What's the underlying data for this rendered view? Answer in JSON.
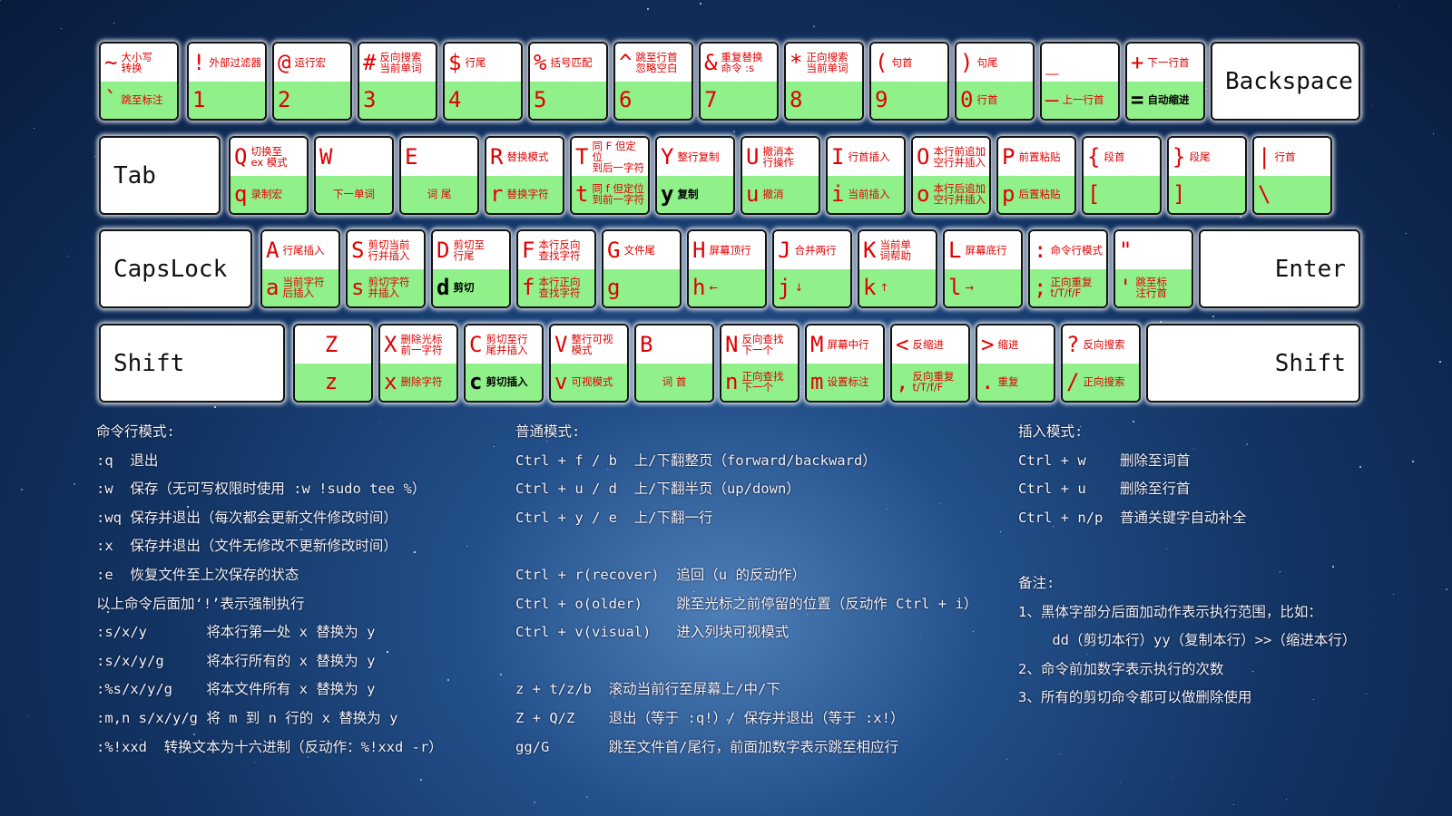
{
  "keyboard": {
    "rows": [
      {
        "keys": [
          {
            "top_char": "~",
            "top_text": "大小写\n转换",
            "bottom_char": "`",
            "bottom_text": "跳至标注"
          },
          {
            "top_char": "!",
            "top_text": "外部过滤器",
            "bottom_char": "1"
          },
          {
            "top_char": "@",
            "top_text": "运行宏",
            "bottom_char": "2"
          },
          {
            "top_char": "#",
            "top_text": "反向搜索\n当前单词",
            "bottom_char": "3"
          },
          {
            "top_char": "$",
            "top_text": "行尾",
            "bottom_char": "4"
          },
          {
            "top_char": "%",
            "top_text": "括号匹配",
            "bottom_char": "5"
          },
          {
            "top_char": "^",
            "top_text": "跳至行首\n忽略空白",
            "bottom_char": "6"
          },
          {
            "top_char": "&",
            "top_text": "重复替换\n命令 :s",
            "bottom_char": "7"
          },
          {
            "top_char": "*",
            "top_text": "正向搜索\n当前单词",
            "bottom_char": "8"
          },
          {
            "top_char": "(",
            "top_text": "句首",
            "bottom_char": "9"
          },
          {
            "top_char": ")",
            "top_text": "句尾",
            "bottom_char": "0",
            "bottom_text": "行首"
          },
          {
            "top_char": "_",
            "bottom_char": "—",
            "bottom_text": "上一行首"
          },
          {
            "top_char": "+",
            "top_text": "下一行首",
            "bottom_char": "=",
            "bottom_text": "自动缩进",
            "bottom_bold": true
          },
          {
            "label": "Backspace"
          }
        ]
      },
      {
        "keys": [
          {
            "label": "Tab"
          },
          {
            "top_char": "Q",
            "top_text": "切换至\nex 模式",
            "bottom_char": "q",
            "bottom_text": "录制宏"
          },
          {
            "top_char": "W",
            "bottom_text": "下一单词"
          },
          {
            "top_char": "E",
            "bottom_text": "词 尾"
          },
          {
            "top_char": "R",
            "top_text": "替换模式",
            "bottom_char": "r",
            "bottom_text": "替换字符"
          },
          {
            "top_char": "T",
            "top_text": "同 F 但定位\n到后一字符",
            "bottom_char": "t",
            "bottom_text": "同 f 但定位\n到前一字符"
          },
          {
            "top_char": "Y",
            "top_text": "整行复制",
            "bottom_char": "y",
            "bottom_text": "复制",
            "bottom_bold": true
          },
          {
            "top_char": "U",
            "top_text": "撤消本\n行操作",
            "bottom_char": "u",
            "bottom_text": "撤消"
          },
          {
            "top_char": "I",
            "top_text": "行首插入",
            "bottom_char": "i",
            "bottom_text": "当前插入"
          },
          {
            "top_char": "O",
            "top_text": "本行前追加\n空行并插入",
            "bottom_char": "o",
            "bottom_text": "本行后追加\n空行并插入"
          },
          {
            "top_char": "P",
            "top_text": "前置粘贴",
            "bottom_char": "p",
            "bottom_text": "后置粘贴"
          },
          {
            "top_char": "{",
            "top_text": "段首",
            "bottom_char": "["
          },
          {
            "top_char": "}",
            "top_text": "段尾",
            "bottom_char": "]"
          },
          {
            "top_char": "|",
            "top_text": "行首",
            "bottom_char": "\\"
          }
        ]
      },
      {
        "keys": [
          {
            "label": "CapsLock"
          },
          {
            "top_char": "A",
            "top_text": "行尾插入",
            "bottom_char": "a",
            "bottom_text": "当前字符\n后插入"
          },
          {
            "top_char": "S",
            "top_text": "剪切当前\n行并插入",
            "bottom_char": "s",
            "bottom_text": "剪切字符\n并插入"
          },
          {
            "top_char": "D",
            "top_text": "剪切至\n行尾",
            "bottom_char": "d",
            "bottom_text": "剪切",
            "bottom_bold": true
          },
          {
            "top_char": "F",
            "top_text": "本行反向\n查找字符",
            "bottom_char": "f",
            "bottom_text": "本行正向\n查找字符"
          },
          {
            "top_char": "G",
            "top_text": "文件尾",
            "bottom_char": "g"
          },
          {
            "top_char": "H",
            "top_text": "屏幕顶行",
            "bottom_char": "h",
            "bottom_text": "←"
          },
          {
            "top_char": "J",
            "top_text": "合并两行",
            "bottom_char": "j",
            "bottom_text": "↓"
          },
          {
            "top_char": "K",
            "top_text": "当前单\n词帮助",
            "bottom_char": "k",
            "bottom_text": "↑"
          },
          {
            "top_char": "L",
            "top_text": "屏幕底行",
            "bottom_char": "l",
            "bottom_text": "→"
          },
          {
            "top_char": ":",
            "top_text": "命令行模式",
            "bottom_char": ";",
            "bottom_text": "正向重复\nt/T/f/F"
          },
          {
            "top_char": "\"",
            "bottom_char": "'",
            "bottom_text": "跳至标\n注行首"
          },
          {
            "label": "Enter"
          }
        ]
      },
      {
        "keys": [
          {
            "label": "Shift"
          },
          {
            "top_char": "Z",
            "bottom_char": "z"
          },
          {
            "top_char": "X",
            "top_text": "删除光标\n前一字符",
            "bottom_char": "x",
            "bottom_text": "删除字符"
          },
          {
            "top_char": "C",
            "top_text": "剪切至行\n尾并插入",
            "bottom_char": "c",
            "bottom_text": "剪切插入",
            "bottom_bold": true
          },
          {
            "top_char": "V",
            "top_text": "整行可视\n模式",
            "bottom_char": "v",
            "bottom_text": "可视模式"
          },
          {
            "top_char": "B",
            "bottom_text": "词 首"
          },
          {
            "top_char": "N",
            "top_text": "反向查找\n下一个",
            "bottom_char": "n",
            "bottom_text": "正向查找\n下一个"
          },
          {
            "top_char": "M",
            "top_text": "屏幕中行",
            "bottom_char": "m",
            "bottom_text": "设置标注"
          },
          {
            "top_char": "<",
            "top_text": "反缩进",
            "bottom_char": ",",
            "bottom_text": "反向重复\nt/T/f/F"
          },
          {
            "top_char": ">",
            "top_text": "缩进",
            "bottom_char": ".",
            "bottom_text": "重复"
          },
          {
            "top_char": "?",
            "top_text": "反向搜索",
            "bottom_char": "/",
            "bottom_text": "正向搜索"
          },
          {
            "label": "Shift"
          }
        ]
      }
    ]
  },
  "notes": [
    {
      "title": "命令行模式:",
      "groups": [
        [
          ":q  退出",
          ":w  保存（无可写权限时使用 :w !sudo tee %）",
          ":wq 保存并退出（每次都会更新文件修改时间）",
          ":x  保存并退出（文件无修改不更新修改时间）",
          ":e  恢复文件至上次保存的状态",
          "以上命令后面加‘!’表示强制执行",
          ":s/x/y       将本行第一处 x 替换为 y",
          ":s/x/y/g     将本行所有的 x 替换为 y",
          ":%s/x/y/g    将本文件所有 x 替换为 y",
          ":m,n s/x/y/g 将 m 到 n 行的 x 替换为 y",
          ":%!xxd  转换文本为十六进制（反动作：%!xxd -r）"
        ]
      ]
    },
    {
      "title": "普通模式:",
      "groups": [
        [
          "Ctrl + f / b  上/下翻整页（forward/backward）",
          "Ctrl + u / d  上/下翻半页（up/down）",
          "Ctrl + y / e  上/下翻一行"
        ],
        [
          "Ctrl + r(recover)  追回（u 的反动作）",
          "Ctrl + o(older)    跳至光标之前停留的位置（反动作 Ctrl + i）",
          "Ctrl + v(visual)   进入列块可视模式"
        ],
        [
          "z + t/z/b  滚动当前行至屏幕上/中/下",
          "Z + Q/Z    退出（等于 :q!）/ 保存并退出（等于 :x!）",
          "gg/G       跳至文件首/尾行，前面加数字表示跳至相应行"
        ]
      ]
    },
    {
      "title": "插入模式:",
      "groups": [
        [
          "Ctrl + w    删除至词首",
          "Ctrl + u    删除至行首",
          "Ctrl + n/p  普通关键字自动补全"
        ]
      ]
    },
    {
      "title": "备注:",
      "groups": [
        [
          "1、黑体字部分后面加动作表示执行范围，比如：",
          "    dd（剪切本行）yy（复制本行）>>（缩进本行）",
          "2、命令前加数字表示执行的次数",
          "3、所有的剪切命令都可以做删除使用"
        ]
      ]
    }
  ]
}
